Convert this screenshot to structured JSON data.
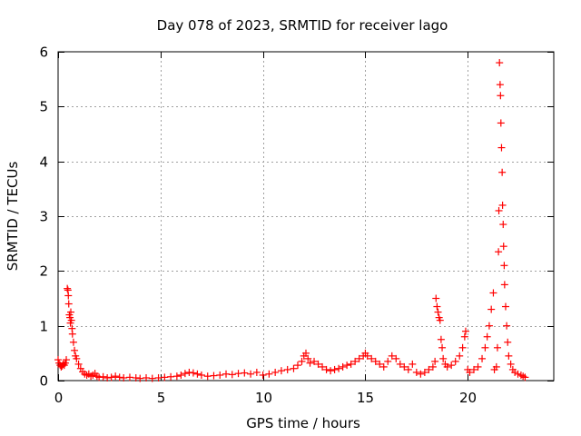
{
  "chart_data": {
    "type": "scatter",
    "title": "Day 078 of 2023, SRMTID for receiver lago",
    "xlabel": "GPS time / hours",
    "ylabel": "SRMTID / TECUs",
    "xlim": [
      0,
      24.2
    ],
    "ylim": [
      0,
      6
    ],
    "x_ticks": [
      0,
      5,
      10,
      15,
      20
    ],
    "y_ticks": [
      0,
      1,
      2,
      3,
      4,
      5,
      6
    ],
    "grid": true,
    "marker": "+",
    "series": [
      {
        "name": "SRMTID",
        "color": "#ff0000",
        "points": [
          [
            0.0,
            0.38
          ],
          [
            0.05,
            0.32
          ],
          [
            0.1,
            0.28
          ],
          [
            0.15,
            0.25
          ],
          [
            0.2,
            0.27
          ],
          [
            0.25,
            0.3
          ],
          [
            0.3,
            0.28
          ],
          [
            0.35,
            0.32
          ],
          [
            0.4,
            0.38
          ],
          [
            0.45,
            1.68
          ],
          [
            0.48,
            1.65
          ],
          [
            0.5,
            1.55
          ],
          [
            0.52,
            1.4
          ],
          [
            0.55,
            1.2
          ],
          [
            0.58,
            1.15
          ],
          [
            0.6,
            1.05
          ],
          [
            0.62,
            1.25
          ],
          [
            0.65,
            1.1
          ],
          [
            0.68,
            0.95
          ],
          [
            0.7,
            0.85
          ],
          [
            0.75,
            0.7
          ],
          [
            0.8,
            0.55
          ],
          [
            0.85,
            0.45
          ],
          [
            0.9,
            0.4
          ],
          [
            1.0,
            0.3
          ],
          [
            1.1,
            0.22
          ],
          [
            1.2,
            0.16
          ],
          [
            1.3,
            0.12
          ],
          [
            1.4,
            0.1
          ],
          [
            1.5,
            0.12
          ],
          [
            1.6,
            0.08
          ],
          [
            1.7,
            0.1
          ],
          [
            1.8,
            0.13
          ],
          [
            1.9,
            0.08
          ],
          [
            2.0,
            0.06
          ],
          [
            2.2,
            0.07
          ],
          [
            2.4,
            0.05
          ],
          [
            2.6,
            0.06
          ],
          [
            2.8,
            0.08
          ],
          [
            3.0,
            0.06
          ],
          [
            3.2,
            0.05
          ],
          [
            3.5,
            0.06
          ],
          [
            3.8,
            0.05
          ],
          [
            4.0,
            0.04
          ],
          [
            4.3,
            0.05
          ],
          [
            4.6,
            0.04
          ],
          [
            4.9,
            0.05
          ],
          [
            5.2,
            0.06
          ],
          [
            5.5,
            0.07
          ],
          [
            5.8,
            0.08
          ],
          [
            6.0,
            0.1
          ],
          [
            6.2,
            0.13
          ],
          [
            6.4,
            0.15
          ],
          [
            6.6,
            0.14
          ],
          [
            6.8,
            0.12
          ],
          [
            7.0,
            0.1
          ],
          [
            7.3,
            0.08
          ],
          [
            7.6,
            0.09
          ],
          [
            7.9,
            0.1
          ],
          [
            8.2,
            0.12
          ],
          [
            8.5,
            0.11
          ],
          [
            8.8,
            0.13
          ],
          [
            9.1,
            0.14
          ],
          [
            9.4,
            0.12
          ],
          [
            9.7,
            0.15
          ],
          [
            10.0,
            0.1
          ],
          [
            10.3,
            0.12
          ],
          [
            10.6,
            0.15
          ],
          [
            10.9,
            0.18
          ],
          [
            11.2,
            0.2
          ],
          [
            11.5,
            0.22
          ],
          [
            11.7,
            0.28
          ],
          [
            11.9,
            0.35
          ],
          [
            12.0,
            0.45
          ],
          [
            12.1,
            0.5
          ],
          [
            12.2,
            0.4
          ],
          [
            12.3,
            0.32
          ],
          [
            12.5,
            0.35
          ],
          [
            12.7,
            0.3
          ],
          [
            12.9,
            0.25
          ],
          [
            13.1,
            0.2
          ],
          [
            13.3,
            0.18
          ],
          [
            13.5,
            0.2
          ],
          [
            13.7,
            0.22
          ],
          [
            13.9,
            0.25
          ],
          [
            14.1,
            0.28
          ],
          [
            14.3,
            0.3
          ],
          [
            14.5,
            0.35
          ],
          [
            14.7,
            0.4
          ],
          [
            14.9,
            0.45
          ],
          [
            15.0,
            0.5
          ],
          [
            15.1,
            0.45
          ],
          [
            15.3,
            0.4
          ],
          [
            15.5,
            0.35
          ],
          [
            15.7,
            0.3
          ],
          [
            15.9,
            0.25
          ],
          [
            16.1,
            0.35
          ],
          [
            16.3,
            0.45
          ],
          [
            16.5,
            0.4
          ],
          [
            16.7,
            0.3
          ],
          [
            16.9,
            0.25
          ],
          [
            17.1,
            0.2
          ],
          [
            17.3,
            0.3
          ],
          [
            17.5,
            0.15
          ],
          [
            17.7,
            0.12
          ],
          [
            17.9,
            0.15
          ],
          [
            18.1,
            0.2
          ],
          [
            18.3,
            0.25
          ],
          [
            18.4,
            0.35
          ],
          [
            18.45,
            1.5
          ],
          [
            18.5,
            1.35
          ],
          [
            18.55,
            1.25
          ],
          [
            18.6,
            1.15
          ],
          [
            18.65,
            1.1
          ],
          [
            18.7,
            0.75
          ],
          [
            18.75,
            0.6
          ],
          [
            18.8,
            0.4
          ],
          [
            18.9,
            0.3
          ],
          [
            19.0,
            0.25
          ],
          [
            19.2,
            0.28
          ],
          [
            19.4,
            0.35
          ],
          [
            19.6,
            0.45
          ],
          [
            19.75,
            0.6
          ],
          [
            19.85,
            0.8
          ],
          [
            19.9,
            0.9
          ],
          [
            20.0,
            0.2
          ],
          [
            20.1,
            0.15
          ],
          [
            20.3,
            0.2
          ],
          [
            20.5,
            0.25
          ],
          [
            20.7,
            0.4
          ],
          [
            20.85,
            0.6
          ],
          [
            20.95,
            0.8
          ],
          [
            21.05,
            1.0
          ],
          [
            21.15,
            1.3
          ],
          [
            21.25,
            1.6
          ],
          [
            21.3,
            0.2
          ],
          [
            21.4,
            0.25
          ],
          [
            21.45,
            0.6
          ],
          [
            21.5,
            2.35
          ],
          [
            21.52,
            3.1
          ],
          [
            21.55,
            5.8
          ],
          [
            21.58,
            5.4
          ],
          [
            21.6,
            5.2
          ],
          [
            21.62,
            4.7
          ],
          [
            21.65,
            4.25
          ],
          [
            21.68,
            3.8
          ],
          [
            21.7,
            3.2
          ],
          [
            21.73,
            2.85
          ],
          [
            21.75,
            2.45
          ],
          [
            21.78,
            2.1
          ],
          [
            21.8,
            1.75
          ],
          [
            21.85,
            1.35
          ],
          [
            21.9,
            1.0
          ],
          [
            21.95,
            0.7
          ],
          [
            22.0,
            0.45
          ],
          [
            22.1,
            0.3
          ],
          [
            22.2,
            0.2
          ],
          [
            22.3,
            0.15
          ],
          [
            22.45,
            0.12
          ],
          [
            22.6,
            0.1
          ],
          [
            22.7,
            0.08
          ],
          [
            22.8,
            0.06
          ]
        ]
      }
    ]
  }
}
